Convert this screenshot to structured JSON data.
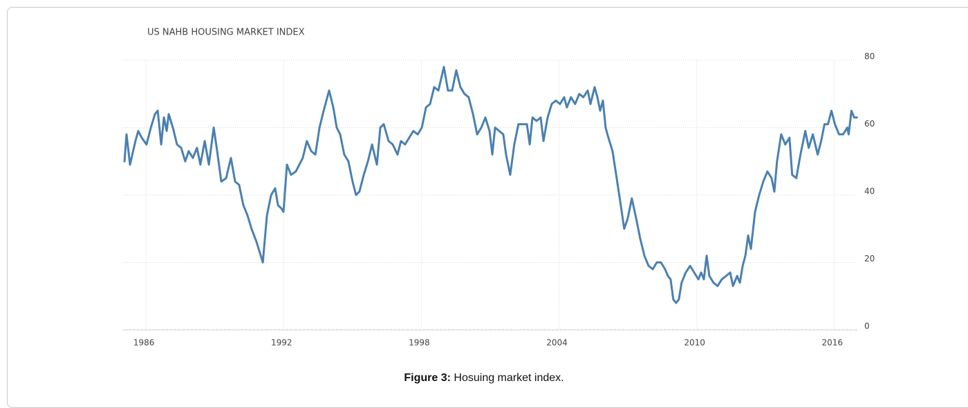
{
  "chart_data": {
    "type": "line",
    "title": "US NAHB HOUSING MARKET INDEX",
    "color": "#4a80b0",
    "x": [
      1985.06,
      1985.15,
      1985.3,
      1985.54,
      1985.66,
      1985.81,
      1986.02,
      1986.21,
      1986.39,
      1986.51,
      1986.66,
      1986.78,
      1986.9,
      1986.99,
      1987.17,
      1987.35,
      1987.53,
      1987.71,
      1987.86,
      1988.04,
      1988.22,
      1988.37,
      1988.56,
      1988.74,
      1988.95,
      1989.1,
      1989.28,
      1989.49,
      1989.7,
      1989.88,
      1990.06,
      1990.24,
      1990.42,
      1990.6,
      1990.82,
      1991.09,
      1991.27,
      1991.45,
      1991.63,
      1991.75,
      1991.9,
      1991.99,
      1992.14,
      1992.32,
      1992.53,
      1992.68,
      1992.83,
      1993.01,
      1993.2,
      1993.38,
      1993.56,
      1993.74,
      1993.98,
      1994.16,
      1994.31,
      1994.46,
      1994.64,
      1994.82,
      1995.0,
      1995.15,
      1995.3,
      1995.49,
      1995.67,
      1995.85,
      1996.06,
      1996.21,
      1996.36,
      1996.57,
      1996.75,
      1996.96,
      1997.11,
      1997.29,
      1997.47,
      1997.65,
      1997.84,
      1998.02,
      1998.2,
      1998.38,
      1998.56,
      1998.74,
      1998.98,
      1999.16,
      1999.34,
      1999.52,
      1999.7,
      1999.88,
      2000.06,
      2000.25,
      2000.43,
      2000.61,
      2000.79,
      2000.97,
      2001.09,
      2001.21,
      2001.39,
      2001.57,
      2001.69,
      2001.87,
      2002.05,
      2002.23,
      2002.42,
      2002.6,
      2002.72,
      2002.84,
      2003.02,
      2003.2,
      2003.32,
      2003.5,
      2003.68,
      2003.86,
      2004.04,
      2004.22,
      2004.34,
      2004.52,
      2004.7,
      2004.88,
      2005.06,
      2005.25,
      2005.37,
      2005.55,
      2005.67,
      2005.79,
      2005.91,
      2006.03,
      2006.15,
      2006.33,
      2006.51,
      2006.69,
      2006.84,
      2006.99,
      2007.17,
      2007.36,
      2007.54,
      2007.72,
      2007.9,
      2008.08,
      2008.26,
      2008.44,
      2008.62,
      2008.74,
      2008.86,
      2008.98,
      2009.1,
      2009.22,
      2009.34,
      2009.52,
      2009.71,
      2009.89,
      2010.07,
      2010.19,
      2010.31,
      2010.43,
      2010.55,
      2010.73,
      2010.91,
      2011.09,
      2011.28,
      2011.46,
      2011.58,
      2011.76,
      2011.88,
      2012.0,
      2012.12,
      2012.24,
      2012.36,
      2012.54,
      2012.72,
      2012.9,
      2013.08,
      2013.26,
      2013.38,
      2013.5,
      2013.68,
      2013.86,
      2014.04,
      2014.16,
      2014.34,
      2014.52,
      2014.73,
      2014.88,
      2015.06,
      2015.27,
      2015.42,
      2015.57,
      2015.72,
      2015.87,
      2016.02,
      2016.2,
      2016.38,
      2016.56,
      2016.62,
      2016.74,
      2016.86,
      2016.98
    ],
    "values": [
      50,
      58,
      49,
      56,
      59,
      57,
      55,
      60,
      64,
      65,
      55,
      63,
      59,
      64,
      60,
      55,
      54,
      50,
      53,
      51,
      54,
      49,
      56,
      49,
      60,
      53,
      44,
      45,
      51,
      44,
      43,
      37,
      34,
      30,
      26,
      20,
      34,
      40,
      42,
      37,
      36,
      35,
      49,
      46,
      47,
      49,
      51,
      56,
      53,
      52,
      60,
      65,
      71,
      66,
      60,
      58,
      52,
      50,
      44,
      40,
      41,
      46,
      50,
      55,
      49,
      60,
      61,
      56,
      55,
      52,
      56,
      55,
      57,
      59,
      58,
      60,
      66,
      67,
      72,
      71,
      78,
      71,
      71,
      77,
      72,
      70,
      69,
      64,
      58,
      60,
      63,
      59,
      52,
      60,
      59,
      58,
      52,
      46,
      55,
      61,
      61,
      61,
      55,
      63,
      62,
      63,
      56,
      63,
      67,
      68,
      67,
      69,
      66,
      69,
      67,
      70,
      69,
      71,
      67,
      72,
      69,
      65,
      68,
      60,
      57,
      53,
      45,
      37,
      30,
      33,
      39,
      33,
      27,
      22,
      19,
      18,
      20,
      20,
      18,
      16,
      15,
      9,
      8,
      9,
      14,
      17,
      19,
      17,
      15,
      17,
      15,
      22,
      16,
      14,
      13,
      15,
      16,
      17,
      13,
      16,
      14,
      19,
      22,
      28,
      24,
      35,
      40,
      44,
      47,
      45,
      41,
      50,
      58,
      55,
      57,
      46,
      45,
      52,
      59,
      54,
      58,
      52,
      56,
      61,
      61,
      65,
      61,
      58,
      58,
      60,
      58,
      65,
      63,
      63
    ],
    "xlim": [
      1985,
      2017
    ],
    "xticks": [
      1986,
      1992,
      1998,
      2004,
      2010,
      2016
    ],
    "ylim": [
      0,
      80
    ],
    "yticks": [
      0,
      20,
      40,
      60,
      80
    ],
    "grid": true
  },
  "caption": {
    "label": "Figure 3:",
    "text": "Hosuing market index."
  }
}
